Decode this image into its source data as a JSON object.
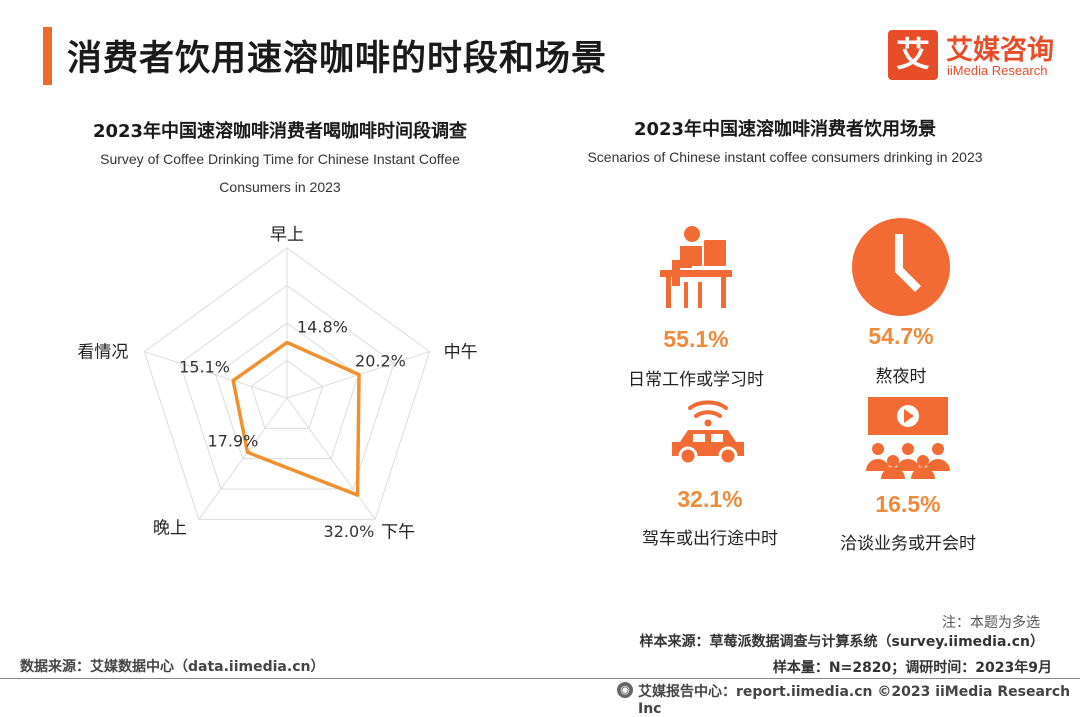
{
  "page": {
    "title": "消费者饮用速溶咖啡的时段和场景",
    "logo_mark": "艾",
    "logo_cn": "艾媒咨询",
    "logo_en": "iiMedia Research"
  },
  "left_section": {
    "title": "2023年中国速溶咖啡消费者喝咖啡时间段调查",
    "subtitle_line1": "Survey of Coffee Drinking Time for Chinese Instant Coffee",
    "subtitle_line2": "Consumers in 2023"
  },
  "chart_data": {
    "type": "radar",
    "categories": [
      "早上",
      "中午",
      "下午",
      "晚上",
      "看情况"
    ],
    "values": [
      14.8,
      20.2,
      32.0,
      17.9,
      15.1
    ],
    "value_labels": [
      "14.8%",
      "20.2%",
      "32.0%",
      "17.9%",
      "15.1%"
    ],
    "rmax": 40,
    "grid_rings": 4,
    "series_color": "#f0902e"
  },
  "right_section": {
    "title": "2023年中国速溶咖啡消费者饮用场景",
    "subtitle": "Scenarios of Chinese instant coffee consumers drinking in 2023",
    "scenarios": [
      {
        "icon": "desk-worker-icon",
        "percent": "55.1%",
        "label": "日常工作或学习时"
      },
      {
        "icon": "clock-icon",
        "percent": "54.7%",
        "label": "熬夜时"
      },
      {
        "icon": "connected-car-icon",
        "percent": "32.1%",
        "label": "驾车或出行途中时"
      },
      {
        "icon": "meeting-presentation-icon",
        "percent": "16.5%",
        "label": "洽谈业务或开会时"
      }
    ],
    "icon_color": "#f26b35"
  },
  "notes": {
    "note1": "注：本题为多选",
    "note2": "样本来源：草莓派数据调查与计算系统（survey.iimedia.cn）",
    "note3": "样本量：N=2820；调研时间：2023年9月"
  },
  "footer": {
    "source_left": "数据来源：艾媒数据中心（data.iimedia.cn）",
    "source_right": "艾媒报告中心：report.iimedia.cn  ©2023  iiMedia Research  Inc"
  }
}
